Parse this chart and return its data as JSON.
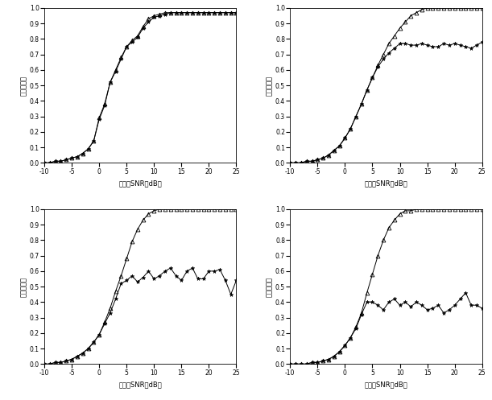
{
  "xlabel": "信噪比SNR（dB）",
  "ylabel": "恢复成功率",
  "snr": [
    -10,
    -9,
    -8,
    -7,
    -6,
    -5,
    -4,
    -3,
    -2,
    -1,
    0,
    1,
    2,
    3,
    4,
    5,
    6,
    7,
    8,
    9,
    10,
    11,
    12,
    13,
    14,
    15,
    16,
    17,
    18,
    19,
    20,
    21,
    22,
    23,
    24,
    25
  ],
  "subplot1_line1": [
    0.0,
    0.0,
    0.01,
    0.01,
    0.02,
    0.03,
    0.04,
    0.06,
    0.09,
    0.14,
    0.29,
    0.38,
    0.52,
    0.6,
    0.68,
    0.75,
    0.79,
    0.82,
    0.88,
    0.93,
    0.95,
    0.96,
    0.97,
    0.97,
    0.97,
    0.97,
    0.97,
    0.97,
    0.97,
    0.97,
    0.97,
    0.97,
    0.97,
    0.97,
    0.97,
    0.97
  ],
  "subplot1_line2": [
    0.0,
    0.0,
    0.01,
    0.01,
    0.02,
    0.03,
    0.04,
    0.06,
    0.09,
    0.14,
    0.28,
    0.37,
    0.52,
    0.59,
    0.67,
    0.75,
    0.78,
    0.81,
    0.87,
    0.91,
    0.94,
    0.95,
    0.96,
    0.97,
    0.97,
    0.97,
    0.97,
    0.97,
    0.97,
    0.97,
    0.97,
    0.97,
    0.97,
    0.97,
    0.97,
    0.97
  ],
  "subplot2_line1": [
    0.0,
    0.0,
    0.0,
    0.01,
    0.01,
    0.02,
    0.03,
    0.05,
    0.08,
    0.11,
    0.16,
    0.22,
    0.3,
    0.38,
    0.47,
    0.55,
    0.63,
    0.7,
    0.77,
    0.82,
    0.87,
    0.91,
    0.95,
    0.97,
    0.99,
    1.0,
    1.0,
    1.0,
    1.0,
    1.0,
    1.0,
    1.0,
    1.0,
    1.0,
    1.0,
    1.0
  ],
  "subplot2_line2": [
    0.0,
    0.0,
    0.0,
    0.01,
    0.01,
    0.02,
    0.03,
    0.05,
    0.08,
    0.11,
    0.16,
    0.22,
    0.3,
    0.38,
    0.47,
    0.55,
    0.62,
    0.67,
    0.71,
    0.74,
    0.77,
    0.77,
    0.76,
    0.76,
    0.77,
    0.76,
    0.75,
    0.75,
    0.77,
    0.76,
    0.77,
    0.76,
    0.75,
    0.74,
    0.76,
    0.78
  ],
  "subplot3_line1": [
    0.0,
    0.0,
    0.01,
    0.01,
    0.02,
    0.03,
    0.05,
    0.07,
    0.1,
    0.14,
    0.19,
    0.27,
    0.36,
    0.47,
    0.57,
    0.68,
    0.79,
    0.87,
    0.93,
    0.97,
    0.99,
    1.0,
    1.0,
    1.0,
    1.0,
    1.0,
    1.0,
    1.0,
    1.0,
    1.0,
    1.0,
    1.0,
    1.0,
    1.0,
    1.0,
    1.0
  ],
  "subplot3_line2": [
    0.0,
    0.0,
    0.01,
    0.01,
    0.02,
    0.03,
    0.05,
    0.07,
    0.1,
    0.14,
    0.19,
    0.26,
    0.33,
    0.42,
    0.52,
    0.54,
    0.57,
    0.53,
    0.56,
    0.6,
    0.55,
    0.57,
    0.6,
    0.62,
    0.57,
    0.54,
    0.6,
    0.62,
    0.55,
    0.55,
    0.6,
    0.6,
    0.61,
    0.54,
    0.45,
    0.54
  ],
  "subplot4_line1": [
    0.0,
    0.0,
    0.0,
    0.0,
    0.01,
    0.01,
    0.02,
    0.03,
    0.05,
    0.08,
    0.12,
    0.17,
    0.24,
    0.33,
    0.46,
    0.58,
    0.7,
    0.8,
    0.88,
    0.93,
    0.97,
    0.99,
    0.99,
    1.0,
    1.0,
    1.0,
    1.0,
    1.0,
    1.0,
    1.0,
    1.0,
    1.0,
    1.0,
    1.0,
    1.0,
    1.0
  ],
  "subplot4_line2": [
    0.0,
    0.0,
    0.0,
    0.0,
    0.01,
    0.01,
    0.02,
    0.03,
    0.05,
    0.08,
    0.12,
    0.17,
    0.23,
    0.32,
    0.4,
    0.4,
    0.38,
    0.35,
    0.4,
    0.42,
    0.38,
    0.4,
    0.37,
    0.4,
    0.38,
    0.35,
    0.36,
    0.38,
    0.33,
    0.35,
    0.38,
    0.42,
    0.46,
    0.38,
    0.38,
    0.36
  ],
  "xlim": [
    -10,
    25
  ],
  "ylim": [
    0,
    1.0
  ],
  "yticks": [
    0,
    0.1,
    0.2,
    0.3,
    0.4,
    0.5,
    0.6,
    0.7,
    0.8,
    0.9,
    1.0
  ],
  "xticks": [
    -10,
    -5,
    0,
    5,
    10,
    15,
    20,
    25
  ],
  "fontsize_label": 6,
  "fontsize_tick": 5.5,
  "linewidth": 0.7,
  "marker_size_tri": 3.5,
  "marker_size_star": 3.5
}
